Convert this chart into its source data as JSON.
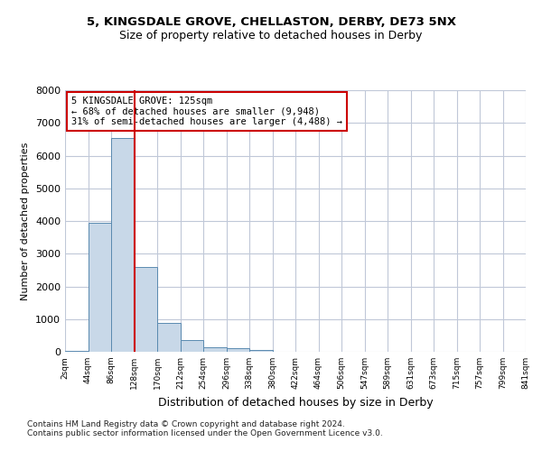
{
  "title1": "5, KINGSDALE GROVE, CHELLASTON, DERBY, DE73 5NX",
  "title2": "Size of property relative to detached houses in Derby",
  "xlabel": "Distribution of detached houses by size in Derby",
  "ylabel": "Number of detached properties",
  "bar_color": "#c8d8e8",
  "bar_edge_color": "#5a8ab0",
  "background_color": "#ffffff",
  "grid_color": "#c0c8d8",
  "annotation_text": "5 KINGSDALE GROVE: 125sqm\n← 68% of detached houses are smaller (9,948)\n31% of semi-detached houses are larger (4,488) →",
  "red_line_x": 3,
  "red_line_color": "#cc0000",
  "footnote": "Contains HM Land Registry data © Crown copyright and database right 2024.\nContains public sector information licensed under the Open Government Licence v3.0.",
  "bin_labels": [
    "2sqm",
    "44sqm",
    "86sqm",
    "128sqm",
    "170sqm",
    "212sqm",
    "254sqm",
    "296sqm",
    "338sqm",
    "380sqm",
    "422sqm",
    "464sqm",
    "506sqm",
    "547sqm",
    "589sqm",
    "631sqm",
    "673sqm",
    "715sqm",
    "757sqm",
    "799sqm",
    "841sqm"
  ],
  "bar_heights": [
    30,
    3950,
    6550,
    2580,
    880,
    350,
    130,
    100,
    60,
    0,
    0,
    0,
    0,
    0,
    0,
    0,
    0,
    0,
    0,
    0
  ],
  "ylim": [
    0,
    8000
  ],
  "yticks": [
    0,
    1000,
    2000,
    3000,
    4000,
    5000,
    6000,
    7000,
    8000
  ]
}
